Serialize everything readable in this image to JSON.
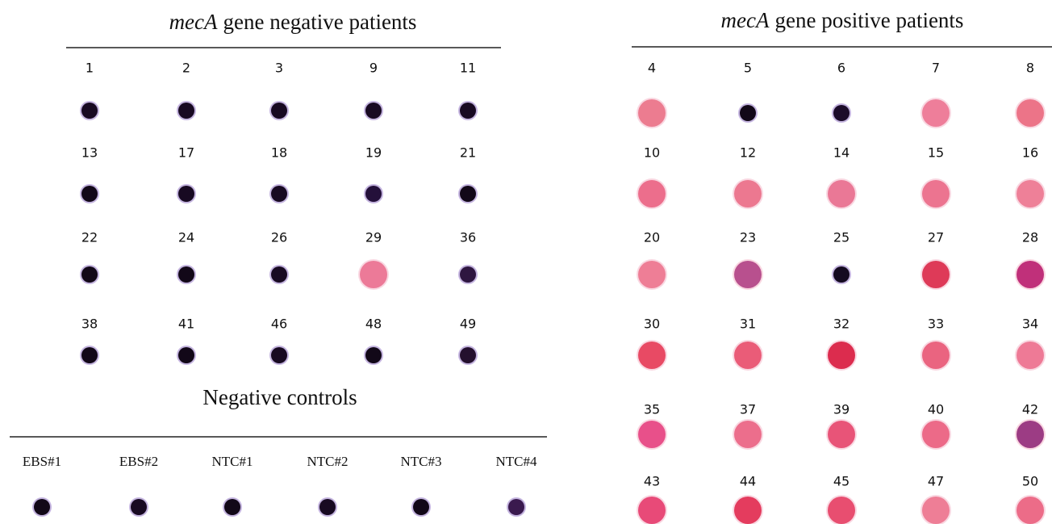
{
  "negative_patients": {
    "title_italic": "mecA",
    "title_rest": "gene negative patients",
    "rows": [
      [
        {
          "label": "1",
          "color": "#180a22"
        },
        {
          "label": "2",
          "color": "#180a22"
        },
        {
          "label": "3",
          "color": "#180a22"
        },
        {
          "label": "9",
          "color": "#180a22"
        },
        {
          "label": "11",
          "color": "#180a22"
        }
      ],
      [
        {
          "label": "13",
          "color": "#120818"
        },
        {
          "label": "17",
          "color": "#180a22"
        },
        {
          "label": "18",
          "color": "#180a22"
        },
        {
          "label": "19",
          "color": "#24103a"
        },
        {
          "label": "21",
          "color": "#120818"
        }
      ],
      [
        {
          "label": "22",
          "color": "#120818"
        },
        {
          "label": "24",
          "color": "#120818"
        },
        {
          "label": "26",
          "color": "#180a22"
        },
        {
          "label": "29",
          "color": "#ec7a98"
        },
        {
          "label": "36",
          "color": "#2e1640"
        }
      ],
      [
        {
          "label": "38",
          "color": "#120818"
        },
        {
          "label": "41",
          "color": "#120818"
        },
        {
          "label": "46",
          "color": "#180a22"
        },
        {
          "label": "48",
          "color": "#120818"
        },
        {
          "label": "49",
          "color": "#24102e"
        }
      ]
    ]
  },
  "negative_controls": {
    "title": "Negative controls",
    "items": [
      {
        "label": "EBS#1",
        "color": "#120818"
      },
      {
        "label": "EBS#2",
        "color": "#180a22"
      },
      {
        "label": "NTC#1",
        "color": "#120818"
      },
      {
        "label": "NTC#2",
        "color": "#180a22"
      },
      {
        "label": "NTC#3",
        "color": "#120818"
      },
      {
        "label": "NTC#4",
        "color": "#3a1a4e"
      }
    ]
  },
  "positive_patients": {
    "title_italic": "mecA",
    "title_rest": "gene positive patients",
    "rows": [
      [
        {
          "label": "4",
          "color": "#ec7c90"
        },
        {
          "label": "5",
          "color": "#120818"
        },
        {
          "label": "6",
          "color": "#1c0c2a"
        },
        {
          "label": "7",
          "color": "#ee7e9a"
        },
        {
          "label": "8",
          "color": "#ec7488"
        }
      ],
      [
        {
          "label": "10",
          "color": "#ec6e8c"
        },
        {
          "label": "12",
          "color": "#ec7890"
        },
        {
          "label": "14",
          "color": "#ea7896"
        },
        {
          "label": "15",
          "color": "#ec7490"
        },
        {
          "label": "16",
          "color": "#ee8098"
        }
      ],
      [
        {
          "label": "20",
          "color": "#ee7e96"
        },
        {
          "label": "23",
          "color": "#b8508e"
        },
        {
          "label": "25",
          "color": "#140a20"
        },
        {
          "label": "27",
          "color": "#de3a58"
        },
        {
          "label": "28",
          "color": "#c0307a"
        }
      ],
      [
        {
          "label": "30",
          "color": "#e84a64"
        },
        {
          "label": "31",
          "color": "#ea5c78"
        },
        {
          "label": "32",
          "color": "#dc2c4e"
        },
        {
          "label": "33",
          "color": "#ea6480"
        },
        {
          "label": "34",
          "color": "#ee7a96"
        }
      ],
      [
        {
          "label": "35",
          "color": "#e8508a"
        },
        {
          "label": "37",
          "color": "#ec6e8c"
        },
        {
          "label": "39",
          "color": "#e85478"
        },
        {
          "label": "40",
          "color": "#ec6a88"
        },
        {
          "label": "42",
          "color": "#9c3c84"
        }
      ],
      [
        {
          "label": "43",
          "color": "#e84a78"
        },
        {
          "label": "44",
          "color": "#e43c5e"
        },
        {
          "label": "45",
          "color": "#e84e70"
        },
        {
          "label": "47",
          "color": "#ee7e96"
        },
        {
          "label": "50",
          "color": "#ec6c88"
        }
      ]
    ]
  }
}
